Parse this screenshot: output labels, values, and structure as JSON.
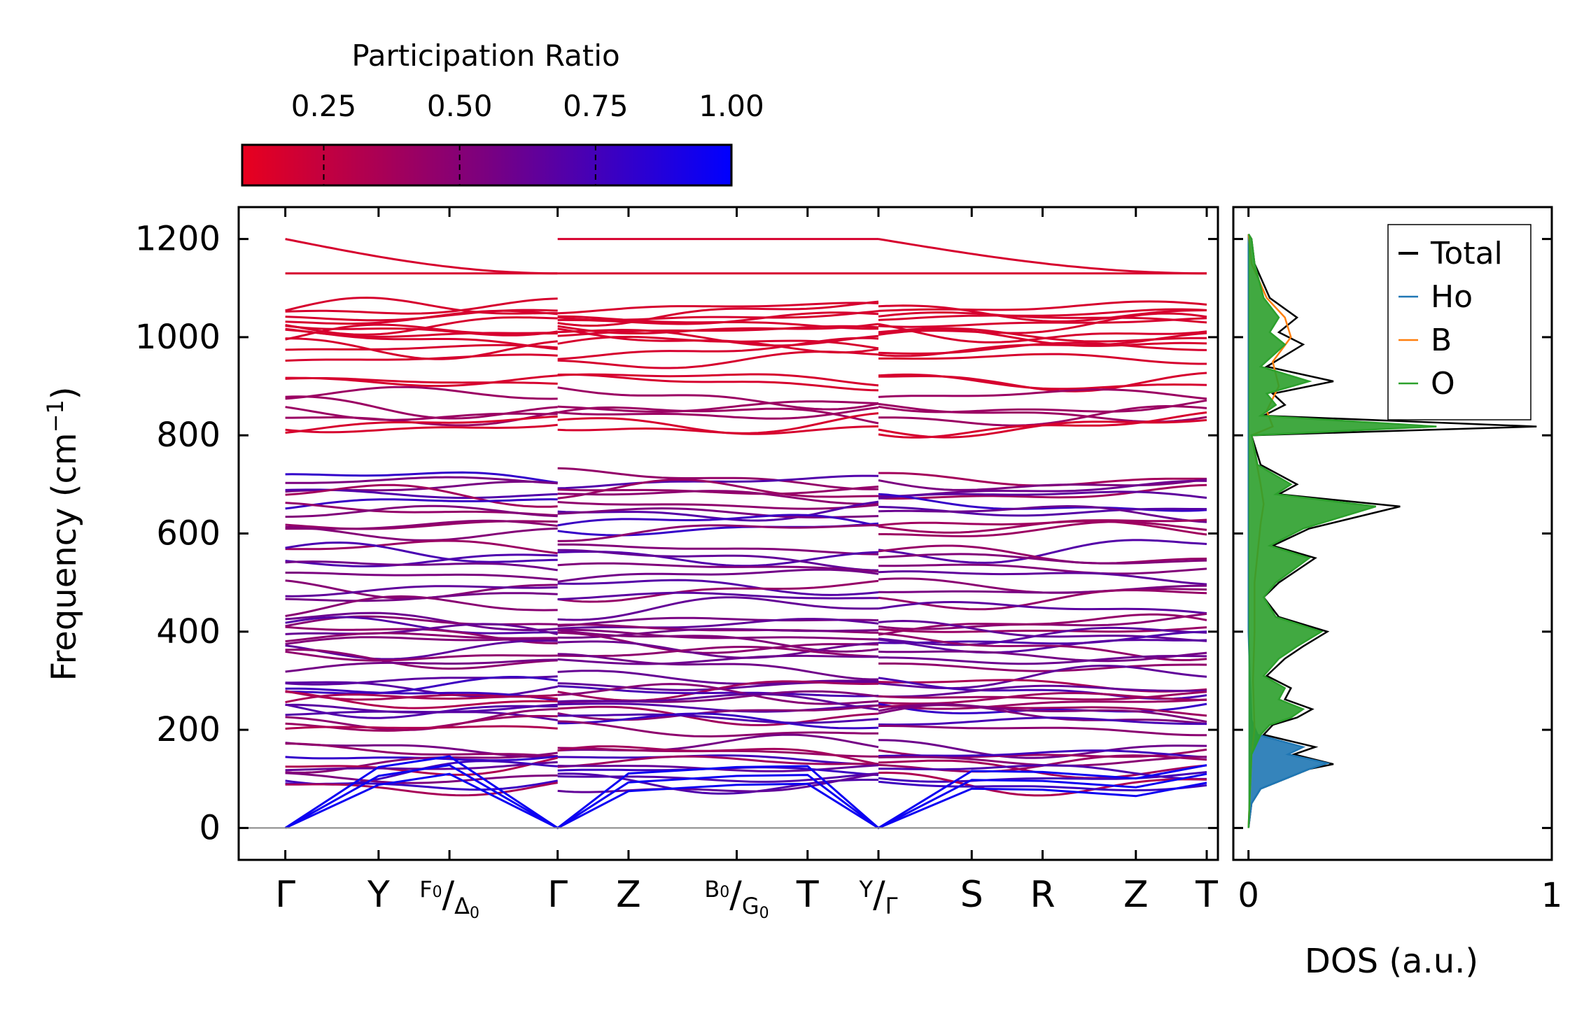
{
  "chart_data": [
    {
      "type": "line",
      "name": "phonon-band-structure",
      "ylabel_main": "Frequency (cm",
      "ylabel_sup": "−1",
      "ylabel_close": ")",
      "ylim": [
        -65,
        1265
      ],
      "yticks": [
        0,
        200,
        400,
        600,
        800,
        1000,
        1200
      ],
      "ytick_labels": [
        "0",
        "200",
        "400",
        "600",
        "800",
        "1000",
        "1200"
      ],
      "kpath": [
        {
          "label": "Γ",
          "x": 0.0
        },
        {
          "label": "Y",
          "x": 0.5
        },
        {
          "main": "F",
          "sub0": "0",
          "sep": "/",
          "main2": "Δ",
          "sub2": "0",
          "x": 0.88
        },
        {
          "label": "Γ",
          "x": 1.46
        },
        {
          "label": "Z",
          "x": 1.84
        },
        {
          "main": "B",
          "sub0": "0",
          "sep": "/",
          "main2": "G",
          "sub2": "0",
          "x": 2.42
        },
        {
          "label": "T",
          "x": 2.8
        },
        {
          "main": "Y",
          "sub0": "",
          "sep": "/",
          "main2": "Γ",
          "sub2": "",
          "x": 3.18
        },
        {
          "label": "S",
          "x": 3.68
        },
        {
          "label": "R",
          "x": 4.06
        },
        {
          "label": "Z",
          "x": 4.56
        },
        {
          "label": "T",
          "x": 4.94
        }
      ],
      "xlim": [
        -0.25,
        5.0
      ],
      "segments": [
        [
          0.0,
          1.46
        ],
        [
          1.46,
          3.18
        ],
        [
          3.18,
          4.94
        ]
      ],
      "band_levels": [
        1200,
        1130,
        1060,
        1052,
        1045,
        1038,
        1030,
        1022,
        1012,
        1003,
        995,
        985,
        975,
        955,
        915,
        908,
        880,
        860,
        848,
        840,
        822,
        820,
        712,
        705,
        690,
        682,
        675,
        660,
        648,
        640,
        620,
        612,
        605,
        568,
        555,
        548,
        530,
        512,
        492,
        485,
        470,
        445,
        420,
        412,
        405,
        398,
        392,
        385,
        378,
        370,
        355,
        345,
        330,
        305,
        292,
        285,
        278,
        270,
        262,
        255,
        248,
        240,
        232,
        225,
        215,
        200,
        165,
        155,
        148,
        140,
        132,
        125,
        115,
        105,
        95,
        88
      ],
      "acoustic_points": [
        [
          0.0,
          0
        ],
        [
          0.5,
          88
        ],
        [
          0.88,
          110
        ],
        [
          1.46,
          0
        ],
        [
          1.84,
          75
        ],
        [
          2.42,
          88
        ],
        [
          2.8,
          90
        ],
        [
          3.18,
          0
        ],
        [
          3.68,
          80
        ],
        [
          4.06,
          78
        ],
        [
          4.56,
          65
        ],
        [
          4.94,
          92
        ]
      ],
      "zero_line": 0,
      "colorbar": {
        "title": "Participation Ratio",
        "range": [
          0.1,
          1.0
        ],
        "ticks": [
          0.25,
          0.5,
          0.75,
          1.0
        ],
        "tick_labels": [
          "0.25",
          "0.50",
          "0.75",
          "1.00"
        ],
        "cmap": [
          "#e8001e",
          "#7a0080",
          "#0000ff"
        ]
      }
    },
    {
      "type": "line",
      "name": "density-of-states",
      "xlabel": "DOS (a.u.)",
      "xlim": [
        -0.05,
        1.0
      ],
      "xticks": [
        0,
        1
      ],
      "xtick_labels": [
        "0",
        "1"
      ],
      "ylim": [
        -65,
        1265
      ],
      "series": [
        {
          "name": "Total",
          "color": "#000000",
          "points": [
            [
              0,
              0
            ],
            [
              0.01,
              50
            ],
            [
              0.04,
              80
            ],
            [
              0.12,
              100
            ],
            [
              0.2,
              120
            ],
            [
              0.28,
              130
            ],
            [
              0.15,
              150
            ],
            [
              0.22,
              165
            ],
            [
              0.05,
              190
            ],
            [
              0.08,
              210
            ],
            [
              0.16,
              225
            ],
            [
              0.21,
              242
            ],
            [
              0.12,
              262
            ],
            [
              0.14,
              285
            ],
            [
              0.06,
              310
            ],
            [
              0.12,
              345
            ],
            [
              0.18,
              370
            ],
            [
              0.26,
              400
            ],
            [
              0.1,
              430
            ],
            [
              0.05,
              470
            ],
            [
              0.1,
              500
            ],
            [
              0.22,
              550
            ],
            [
              0.08,
              575
            ],
            [
              0.2,
              610
            ],
            [
              0.5,
              655
            ],
            [
              0.1,
              680
            ],
            [
              0.16,
              700
            ],
            [
              0.04,
              740
            ],
            [
              0.01,
              800
            ],
            [
              0.95,
              818
            ],
            [
              0.05,
              840
            ],
            [
              0.12,
              862
            ],
            [
              0.08,
              885
            ],
            [
              0.28,
              910
            ],
            [
              0.06,
              940
            ],
            [
              0.18,
              985
            ],
            [
              0.1,
              1010
            ],
            [
              0.16,
              1040
            ],
            [
              0.07,
              1080
            ],
            [
              0.02,
              1150
            ],
            [
              0.01,
              1200
            ],
            [
              0,
              1210
            ]
          ]
        },
        {
          "name": "Ho",
          "color": "#1f77b4",
          "points": [
            [
              0,
              0
            ],
            [
              0.01,
              50
            ],
            [
              0.04,
              80
            ],
            [
              0.12,
              100
            ],
            [
              0.2,
              120
            ],
            [
              0.26,
              132
            ],
            [
              0.13,
              150
            ],
            [
              0.18,
              165
            ],
            [
              0.03,
              190
            ],
            [
              0.01,
              220
            ],
            [
              0.005,
              300
            ],
            [
              0,
              400
            ],
            [
              0,
              1210
            ]
          ]
        },
        {
          "name": "B",
          "color": "#ff7f0e",
          "points": [
            [
              0,
              0
            ],
            [
              0.01,
              150
            ],
            [
              0.02,
              200
            ],
            [
              0.015,
              300
            ],
            [
              0.02,
              400
            ],
            [
              0.02,
              500
            ],
            [
              0.03,
              560
            ],
            [
              0.04,
              620
            ],
            [
              0.05,
              660
            ],
            [
              0.04,
              700
            ],
            [
              0.01,
              800
            ],
            [
              0.08,
              818
            ],
            [
              0.06,
              850
            ],
            [
              0.1,
              900
            ],
            [
              0.08,
              950
            ],
            [
              0.14,
              1000
            ],
            [
              0.12,
              1040
            ],
            [
              0.06,
              1080
            ],
            [
              0.01,
              1150
            ],
            [
              0,
              1210
            ]
          ]
        },
        {
          "name": "O",
          "color": "#2ca02c",
          "points": [
            [
              0,
              0
            ],
            [
              0.01,
              150
            ],
            [
              0.04,
              190
            ],
            [
              0.07,
              210
            ],
            [
              0.14,
              225
            ],
            [
              0.18,
              242
            ],
            [
              0.1,
              262
            ],
            [
              0.12,
              285
            ],
            [
              0.05,
              310
            ],
            [
              0.1,
              345
            ],
            [
              0.16,
              370
            ],
            [
              0.24,
              400
            ],
            [
              0.09,
              430
            ],
            [
              0.05,
              470
            ],
            [
              0.09,
              500
            ],
            [
              0.2,
              550
            ],
            [
              0.07,
              575
            ],
            [
              0.18,
              610
            ],
            [
              0.42,
              655
            ],
            [
              0.09,
              680
            ],
            [
              0.14,
              700
            ],
            [
              0.03,
              740
            ],
            [
              0.01,
              800
            ],
            [
              0.62,
              818
            ],
            [
              0.04,
              840
            ],
            [
              0.09,
              862
            ],
            [
              0.06,
              885
            ],
            [
              0.2,
              910
            ],
            [
              0.04,
              940
            ],
            [
              0.12,
              985
            ],
            [
              0.07,
              1010
            ],
            [
              0.1,
              1040
            ],
            [
              0.05,
              1080
            ],
            [
              0.02,
              1150
            ],
            [
              0.01,
              1200
            ],
            [
              0,
              1210
            ]
          ]
        }
      ],
      "legend_position": "top-right"
    }
  ]
}
